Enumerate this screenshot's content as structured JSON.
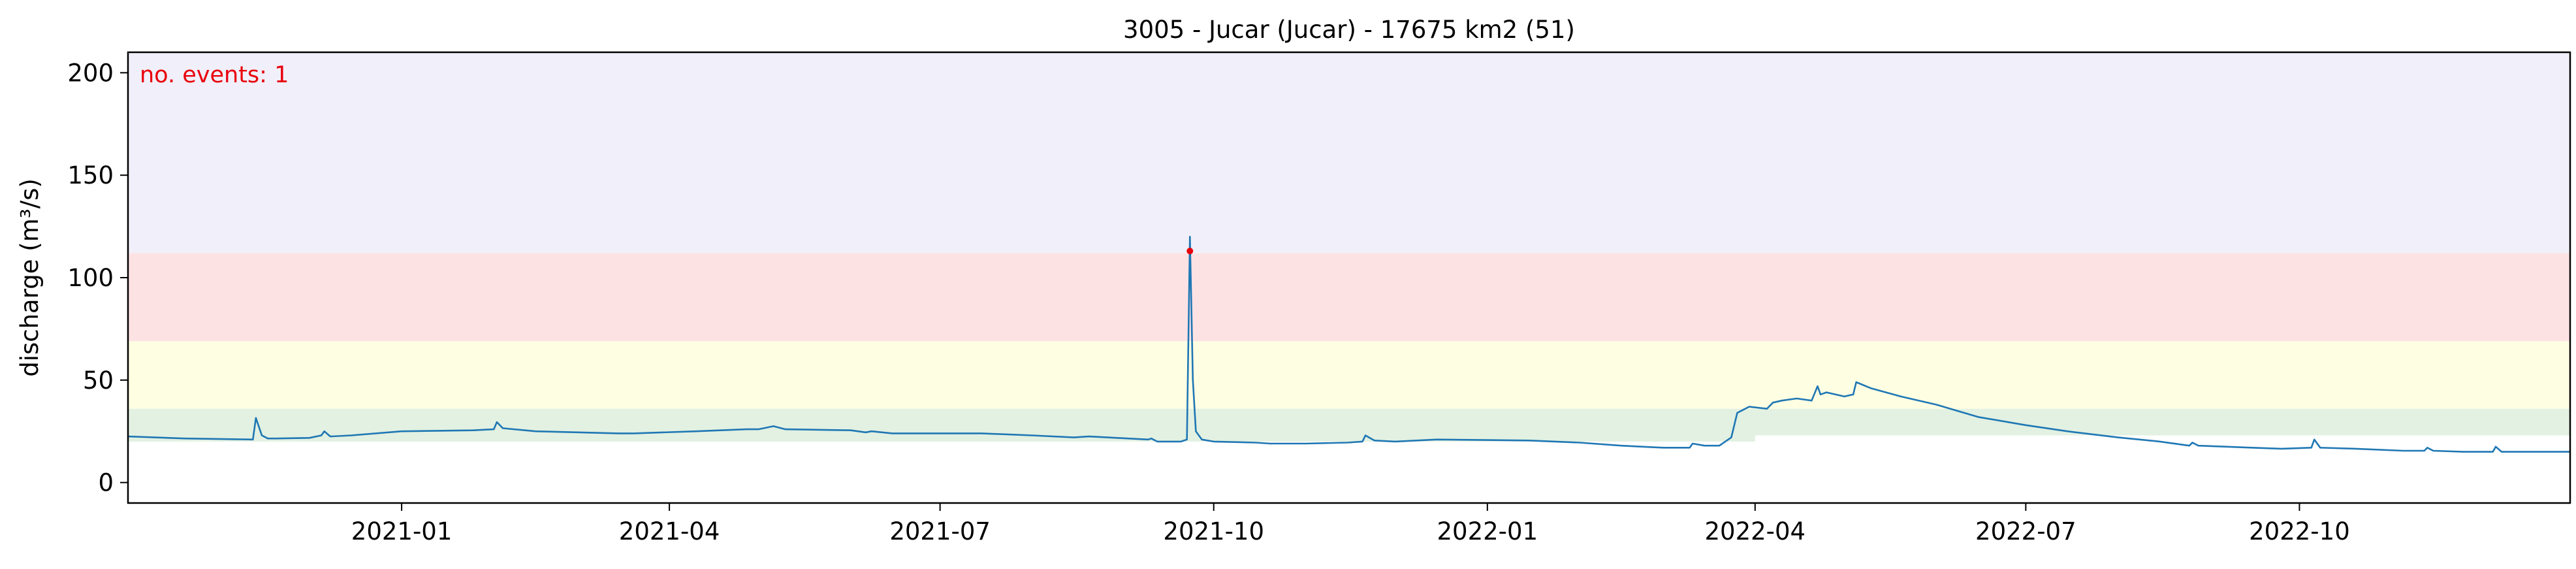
{
  "chart_data": {
    "type": "line",
    "title": "3005 - Jucar (Jucar) - 17675 km2 (51)",
    "xlabel": "",
    "ylabel": "discharge (m³/s)",
    "annotation": "no. events: 1",
    "xlim": [
      "2020-10-01",
      "2022-12-31"
    ],
    "ylim": [
      -10,
      210
    ],
    "grid": false,
    "x_tick_labels": [
      "2021-01",
      "2021-04",
      "2021-07",
      "2021-10",
      "2022-01",
      "2022-04",
      "2022-07",
      "2022-10"
    ],
    "x_ticks": [
      "2021-01-01",
      "2021-04-01",
      "2021-07-01",
      "2021-10-01",
      "2022-01-01",
      "2022-04-01",
      "2022-07-01",
      "2022-10-01"
    ],
    "y_ticks": [
      0,
      50,
      100,
      150,
      200
    ],
    "y_tick_labels": [
      "0",
      "50",
      "100",
      "150",
      "200"
    ],
    "bands": [
      {
        "from": 23,
        "to": 36,
        "color": "#e2f1e2",
        "x_from": "2022-04-01",
        "x_to": "2022-12-31"
      },
      {
        "from": 36,
        "to": 69,
        "color": "#fefee3",
        "x_from": "2020-10-01",
        "x_to": "2022-12-31"
      },
      {
        "from": 69,
        "to": 112,
        "color": "#fde2e4",
        "x_from": "2020-10-01",
        "x_to": "2022-12-31"
      },
      {
        "from": 112,
        "to": 210,
        "color": "#f1eff9",
        "x_from": "2020-10-01",
        "x_to": "2022-12-31"
      }
    ],
    "band_pre_april_green_from": 20,
    "series": [
      {
        "color": "#1f77b4",
        "x": [
          "2020-10-01",
          "2020-10-20",
          "2020-11-12",
          "2020-11-13",
          "2020-11-15",
          "2020-11-17",
          "2020-11-20",
          "2020-12-01",
          "2020-12-05",
          "2020-12-06",
          "2020-12-08",
          "2020-12-15",
          "2021-01-01",
          "2021-01-25",
          "2021-02-01",
          "2021-02-02",
          "2021-02-04",
          "2021-02-15",
          "2021-03-15",
          "2021-03-20",
          "2021-04-10",
          "2021-04-27",
          "2021-05-01",
          "2021-05-06",
          "2021-05-10",
          "2021-06-01",
          "2021-06-06",
          "2021-06-08",
          "2021-06-15",
          "2021-07-15",
          "2021-08-01",
          "2021-08-15",
          "2021-08-20",
          "2021-09-09",
          "2021-09-10",
          "2021-09-12",
          "2021-09-20",
          "2021-09-22",
          "2021-09-23",
          "2021-09-24",
          "2021-09-25",
          "2021-09-27",
          "2021-10-01",
          "2021-10-15",
          "2021-10-20",
          "2021-11-01",
          "2021-11-15",
          "2021-11-20",
          "2021-11-21",
          "2021-11-24",
          "2021-12-01",
          "2021-12-15",
          "2022-01-15",
          "2022-02-01",
          "2022-02-15",
          "2022-03-01",
          "2022-03-10",
          "2022-03-11",
          "2022-03-15",
          "2022-03-20",
          "2022-03-24",
          "2022-03-26",
          "2022-03-30",
          "2022-04-05",
          "2022-04-07",
          "2022-04-10",
          "2022-04-15",
          "2022-04-20",
          "2022-04-22",
          "2022-04-23",
          "2022-04-25",
          "2022-05-01",
          "2022-05-04",
          "2022-05-05",
          "2022-05-10",
          "2022-05-20",
          "2022-06-01",
          "2022-06-15",
          "2022-07-01",
          "2022-07-15",
          "2022-08-01",
          "2022-08-15",
          "2022-08-25",
          "2022-08-26",
          "2022-08-28",
          "2022-09-15",
          "2022-09-25",
          "2022-10-05",
          "2022-10-06",
          "2022-10-08",
          "2022-10-20",
          "2022-11-05",
          "2022-11-12",
          "2022-11-13",
          "2022-11-15",
          "2022-11-25",
          "2022-12-05",
          "2022-12-06",
          "2022-12-08",
          "2022-12-20",
          "2022-12-31"
        ],
        "y": [
          22.5,
          21.5,
          21,
          31.5,
          23,
          21.5,
          21.5,
          21.8,
          23,
          25,
          22.5,
          23,
          25,
          25.5,
          26,
          29.5,
          26.5,
          25,
          24,
          24,
          25,
          26,
          26,
          27.5,
          26,
          25.5,
          24.5,
          25,
          24,
          24,
          23,
          22,
          22.5,
          21,
          21.5,
          20,
          20,
          21,
          120,
          50,
          25,
          21,
          20,
          19.5,
          19,
          19,
          19.5,
          20,
          23,
          20.5,
          20,
          21,
          20.5,
          19.5,
          18,
          17,
          17,
          19,
          18,
          18,
          22,
          34,
          37,
          36,
          39,
          40,
          41,
          40,
          47,
          43,
          44,
          42,
          43,
          49,
          46,
          42,
          38,
          32,
          28,
          25,
          22,
          20,
          18,
          19.5,
          18,
          17,
          16.5,
          17,
          21,
          17,
          16.5,
          15.5,
          15.5,
          17,
          15.5,
          15,
          15,
          17.5,
          15,
          15,
          15
        ]
      }
    ],
    "event_points": [
      {
        "x": "2021-09-23",
        "y": 113,
        "color": "#e8000b"
      }
    ]
  }
}
